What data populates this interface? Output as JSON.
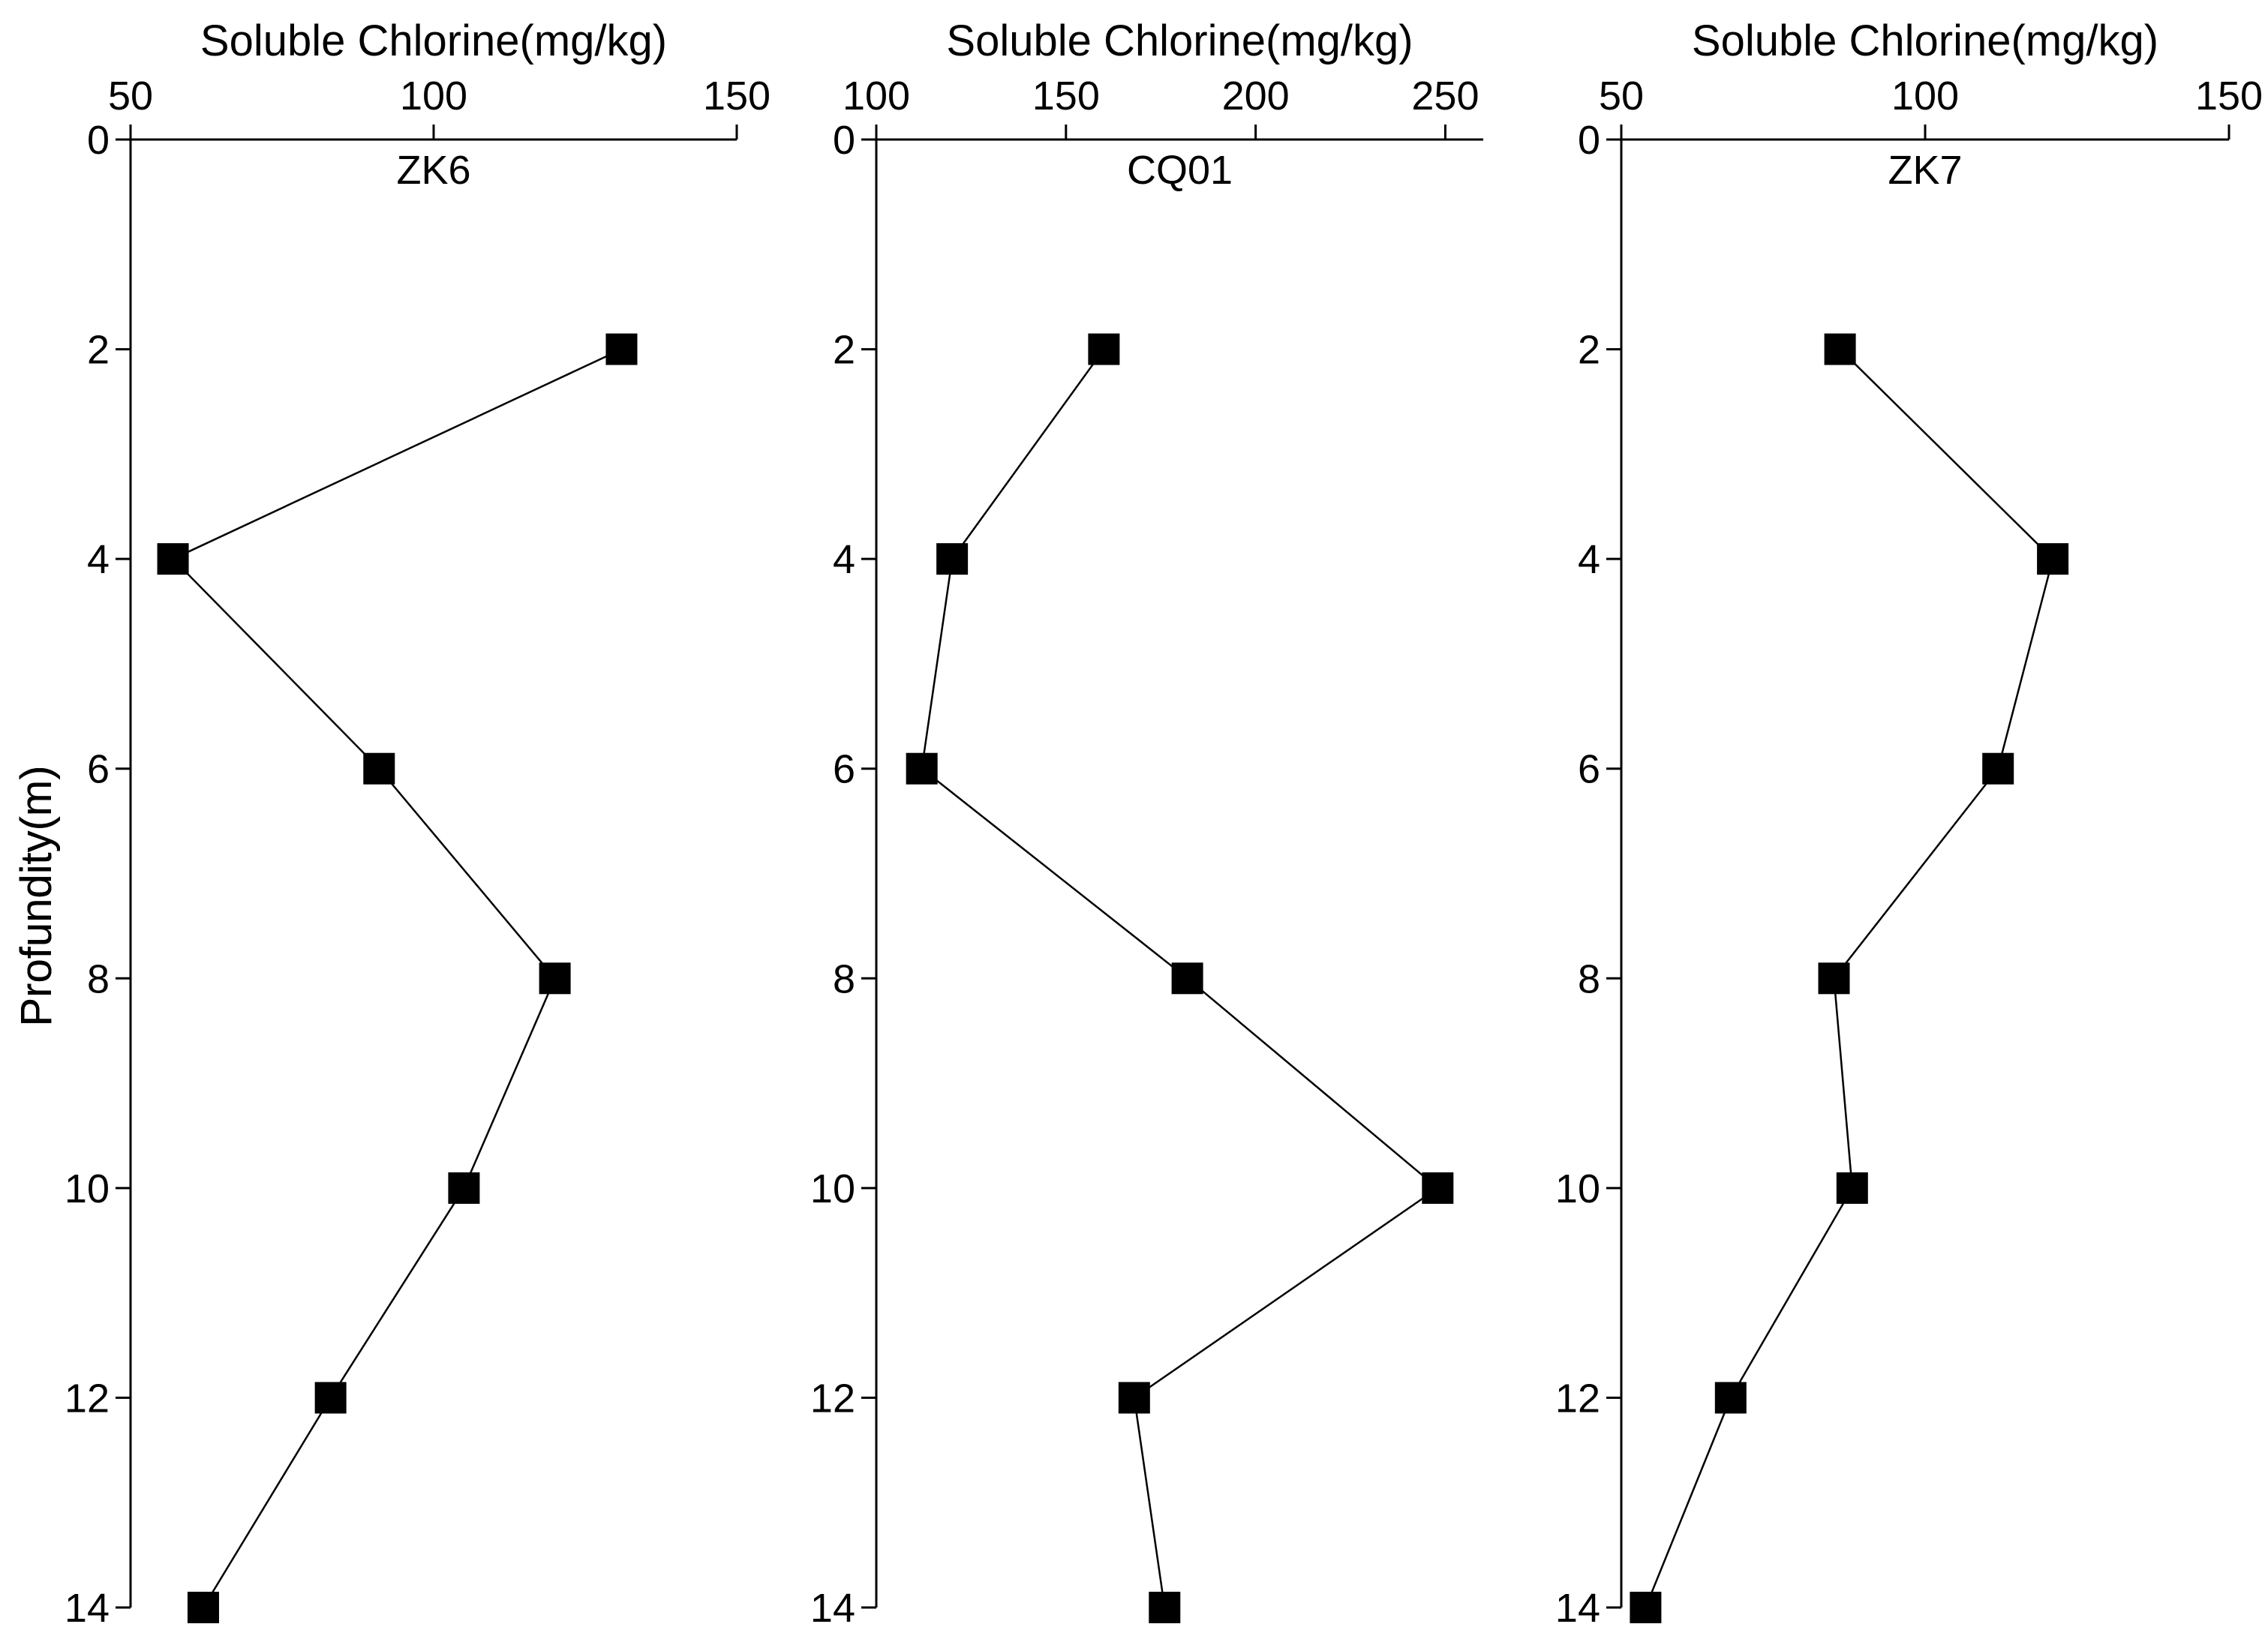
{
  "chart_data": [
    {
      "type": "line",
      "well": "ZK6",
      "xlabel": "Soluble Chlorine(mg/kg)",
      "ylabel": "Profundity(m)",
      "xlim": [
        50,
        150
      ],
      "xticks": [
        50,
        100,
        150
      ],
      "ylim": [
        0,
        14
      ],
      "yticks": [
        0,
        2,
        4,
        6,
        8,
        10,
        12,
        14
      ],
      "depth": [
        2,
        4,
        6,
        8,
        10,
        12,
        14
      ],
      "values": [
        131,
        57,
        91,
        120,
        105,
        83,
        62
      ],
      "marker": "square"
    },
    {
      "type": "line",
      "well": "CQ01",
      "xlabel": "Soluble Chlorine(mg/kg)",
      "ylabel": "Profundity(m)",
      "xlim": [
        100,
        260
      ],
      "xticks": [
        100,
        150,
        200,
        250
      ],
      "ylim": [
        0,
        14
      ],
      "yticks": [
        0,
        2,
        4,
        6,
        8,
        10,
        12,
        14
      ],
      "depth": [
        2,
        4,
        6,
        8,
        10,
        12,
        14
      ],
      "values": [
        160,
        120,
        112,
        182,
        248,
        168,
        176
      ],
      "marker": "square"
    },
    {
      "type": "line",
      "well": "ZK7",
      "xlabel": "Soluble Chlorine(mg/kg)",
      "ylabel": "Profundity(m)",
      "xlim": [
        50,
        150
      ],
      "xticks": [
        50,
        100,
        150
      ],
      "ylim": [
        0,
        14
      ],
      "yticks": [
        0,
        2,
        4,
        6,
        8,
        10,
        12,
        14
      ],
      "depth": [
        2,
        4,
        6,
        8,
        10,
        12,
        14
      ],
      "values": [
        86,
        121,
        112,
        85,
        88,
        68,
        54
      ],
      "marker": "square"
    }
  ],
  "colors": {
    "ink": "#000000",
    "background": "#ffffff"
  }
}
